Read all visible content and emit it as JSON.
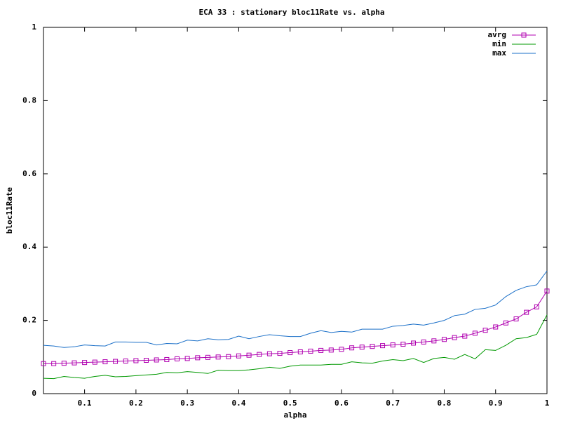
{
  "chart_data": {
    "type": "line",
    "title": "ECA 33 : stationary bloc11Rate vs. alpha",
    "x_label": "alpha",
    "y_label": "bloc11Rate",
    "x": [
      0.02,
      0.04,
      0.06,
      0.08,
      0.1,
      0.12,
      0.14,
      0.16,
      0.18,
      0.2,
      0.22,
      0.24,
      0.26,
      0.28,
      0.3,
      0.32,
      0.34,
      0.36,
      0.38,
      0.4,
      0.42,
      0.44,
      0.46,
      0.48,
      0.5,
      0.52,
      0.54,
      0.56,
      0.58,
      0.6,
      0.62,
      0.64,
      0.66,
      0.68,
      0.7,
      0.72,
      0.74,
      0.76,
      0.78,
      0.8,
      0.82,
      0.84,
      0.86,
      0.88,
      0.9,
      0.92,
      0.94,
      0.96,
      0.98,
      1
    ],
    "series": [
      {
        "name": "avrg",
        "color": "#b000b0",
        "marker": "square",
        "values": [
          0.082,
          0.082,
          0.083,
          0.084,
          0.085,
          0.086,
          0.087,
          0.088,
          0.089,
          0.09,
          0.091,
          0.092,
          0.093,
          0.095,
          0.096,
          0.098,
          0.099,
          0.1,
          0.101,
          0.103,
          0.105,
          0.107,
          0.109,
          0.11,
          0.112,
          0.114,
          0.116,
          0.118,
          0.119,
          0.121,
          0.125,
          0.127,
          0.129,
          0.131,
          0.133,
          0.135,
          0.138,
          0.141,
          0.144,
          0.148,
          0.153,
          0.157,
          0.165,
          0.173,
          0.182,
          0.193,
          0.204,
          0.222,
          0.237,
          0.28
        ]
      },
      {
        "name": "min",
        "color": "#009900",
        "values": [
          0.042,
          0.041,
          0.047,
          0.044,
          0.042,
          0.047,
          0.05,
          0.046,
          0.047,
          0.049,
          0.051,
          0.053,
          0.058,
          0.057,
          0.06,
          0.058,
          0.055,
          0.064,
          0.063,
          0.063,
          0.065,
          0.068,
          0.072,
          0.069,
          0.075,
          0.078,
          0.078,
          0.078,
          0.08,
          0.08,
          0.087,
          0.084,
          0.083,
          0.089,
          0.093,
          0.09,
          0.096,
          0.085,
          0.096,
          0.099,
          0.094,
          0.107,
          0.095,
          0.12,
          0.118,
          0.132,
          0.15,
          0.153,
          0.162,
          0.215
        ]
      },
      {
        "name": "max",
        "color": "#1a6fc8",
        "values": [
          0.132,
          0.13,
          0.126,
          0.128,
          0.133,
          0.131,
          0.13,
          0.141,
          0.141,
          0.14,
          0.14,
          0.133,
          0.137,
          0.136,
          0.146,
          0.144,
          0.15,
          0.147,
          0.148,
          0.157,
          0.15,
          0.156,
          0.161,
          0.158,
          0.156,
          0.156,
          0.165,
          0.172,
          0.167,
          0.17,
          0.168,
          0.176,
          0.176,
          0.176,
          0.184,
          0.186,
          0.19,
          0.187,
          0.193,
          0.2,
          0.213,
          0.217,
          0.23,
          0.233,
          0.242,
          0.265,
          0.282,
          0.292,
          0.297,
          0.335
        ]
      }
    ],
    "xlim": [
      0.02,
      1
    ],
    "xticks": [
      0.1,
      0.2,
      0.3,
      0.4,
      0.5,
      0.6,
      0.7,
      0.8,
      0.9,
      1
    ],
    "ylim": [
      0,
      1
    ],
    "yticks": [
      0,
      0.2,
      0.4,
      0.6,
      0.8,
      1
    ],
    "grid": false,
    "legend": "top-right"
  }
}
